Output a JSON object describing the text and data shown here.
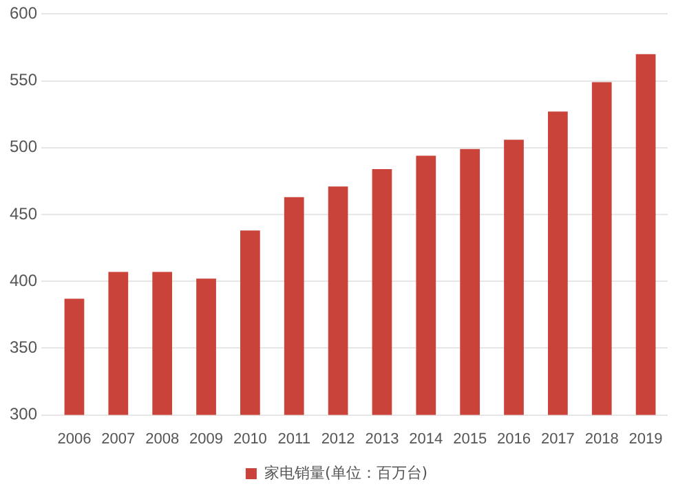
{
  "chart_data": {
    "type": "bar",
    "categories": [
      "2006",
      "2007",
      "2008",
      "2009",
      "2010",
      "2011",
      "2012",
      "2013",
      "2014",
      "2015",
      "2016",
      "2017",
      "2018",
      "2019"
    ],
    "series": [
      {
        "name": "家电销量(单位：百万台)",
        "color": "#c9433a",
        "values": [
          387,
          407,
          407,
          402,
          438,
          463,
          471,
          484,
          494,
          499,
          506,
          527,
          549,
          570
        ]
      }
    ],
    "ylim": [
      300,
      600
    ],
    "yticks": [
      300,
      350,
      400,
      450,
      500,
      550,
      600
    ],
    "grid": "y",
    "legend": "bottom"
  }
}
